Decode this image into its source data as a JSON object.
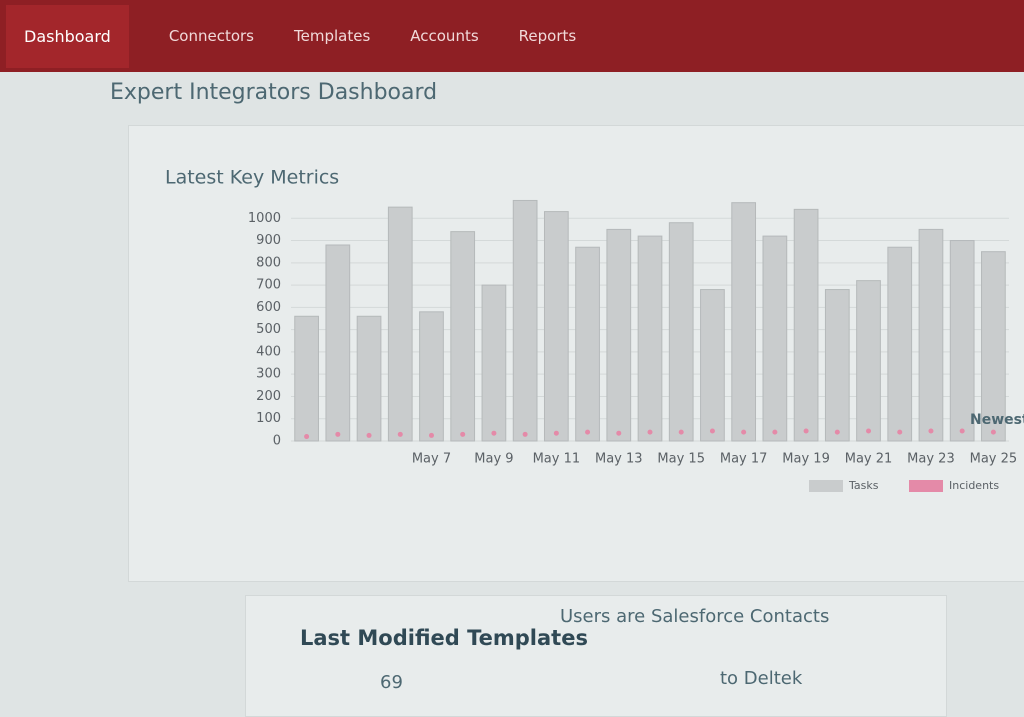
{
  "nav": {
    "items": [
      "Dashboard",
      "Connectors",
      "Templates",
      "Accounts",
      "Reports"
    ]
  },
  "page": {
    "title": "Expert Integrators Dashboard"
  },
  "chart_data": {
    "type": "bar",
    "title": "Latest Key Metrics",
    "categories": [
      null,
      null,
      null,
      null,
      "May 7",
      null,
      "May 9",
      null,
      "May 11",
      null,
      "May 13",
      null,
      "May 15",
      null,
      "May 17",
      null,
      "May 19",
      null,
      "May 21",
      null,
      "May 23",
      null,
      "May 25"
    ],
    "series": [
      {
        "name": "Tasks",
        "type": "bar",
        "color": "#c9cccd",
        "values": [
          560,
          880,
          560,
          1050,
          580,
          940,
          700,
          1080,
          1030,
          870,
          950,
          920,
          980,
          680,
          1070,
          920,
          1040,
          680,
          720,
          870,
          950,
          900,
          850
        ]
      },
      {
        "name": "Incidents",
        "type": "scatter",
        "color": "#e48aa8",
        "values": [
          20,
          30,
          25,
          30,
          25,
          30,
          35,
          30,
          35,
          40,
          35,
          40,
          40,
          45,
          40,
          40,
          45,
          40,
          45,
          40,
          45,
          45,
          40
        ]
      }
    ],
    "ylim": [
      0,
      1100
    ],
    "yticks": [
      0,
      100,
      200,
      300,
      400,
      500,
      600,
      700,
      800,
      900,
      1000
    ],
    "grid": true,
    "legend": "bottom-right"
  },
  "templates": {
    "title": "Last Modified Templates",
    "rows": [
      "69",
      "Users are Salesforce Contacts",
      "to Deltek"
    ]
  },
  "side": {
    "title": "Newest"
  }
}
